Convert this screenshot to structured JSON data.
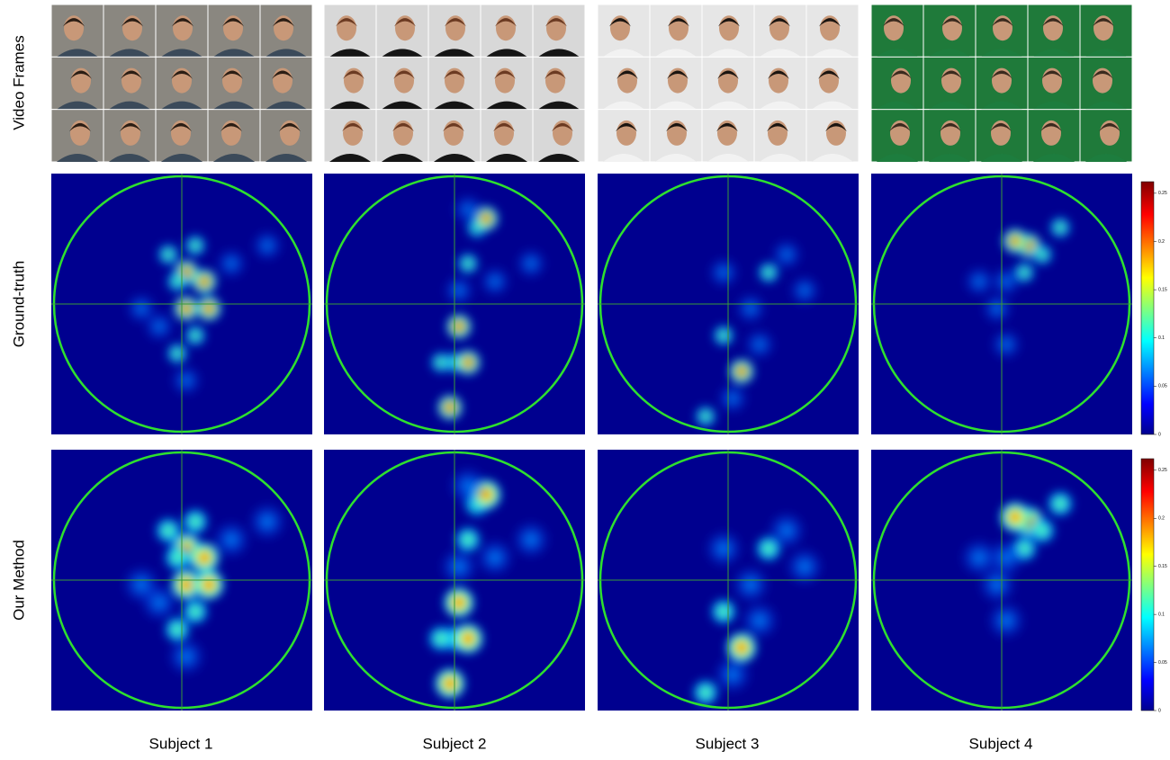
{
  "rows": [
    "Video Frames",
    "Ground-truth",
    "Our Method"
  ],
  "subjects": [
    "Subject 1",
    "Subject 2",
    "Subject 3",
    "Subject 4"
  ],
  "colorbar": {
    "ticks": [
      0,
      0.05,
      0.1,
      0.15,
      0.2,
      0.25
    ]
  }
}
